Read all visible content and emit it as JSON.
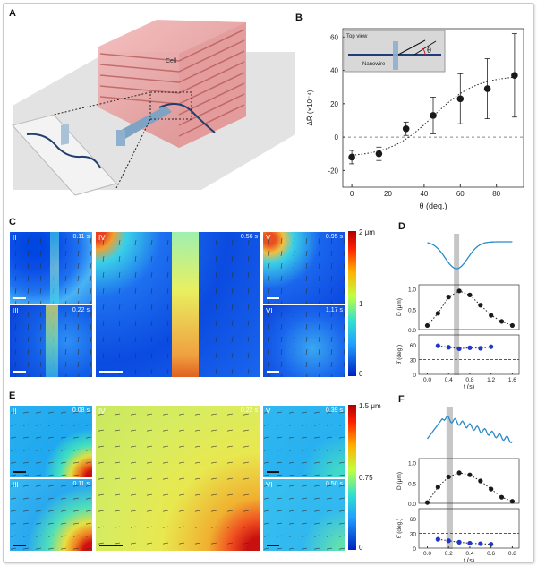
{
  "panels": {
    "A": "A",
    "B": "B",
    "C": "C",
    "D": "D",
    "E": "E",
    "F": "F"
  },
  "panelA": {
    "cell_label": "Cell"
  },
  "panelB": {
    "inset_title": "Top view",
    "inset_nanowire": "Nanowire",
    "inset_theta": "θ",
    "chart_data": {
      "type": "scatter",
      "title": "",
      "xlabel": "θ (deg.)",
      "ylabel": "ΔR̄ (×10⁻⁴)",
      "x": [
        0,
        15,
        30,
        45,
        60,
        75,
        90
      ],
      "y": [
        -12,
        -10,
        5,
        13,
        23,
        29,
        37
      ],
      "err": [
        4,
        4,
        4,
        11,
        15,
        18,
        25
      ],
      "xlim": [
        -5,
        95
      ],
      "ylim": [
        -30,
        65
      ],
      "xticks": [
        0,
        20,
        40,
        60,
        80
      ],
      "yticks": [
        -20,
        0,
        20,
        40,
        60
      ],
      "baseline": 0
    }
  },
  "panelC": {
    "tiles": [
      {
        "label": "II",
        "time": "0.11 s"
      },
      {
        "label": "III",
        "time": "0.22 s"
      },
      {
        "label": "IV",
        "time": "0.56 s"
      },
      {
        "label": "V",
        "time": "0.95 s"
      },
      {
        "label": "VI",
        "time": "1.17 s"
      }
    ],
    "colorbar": {
      "max": "2 μm",
      "mid": "1",
      "min": "0"
    }
  },
  "panelE": {
    "tiles": [
      {
        "label": "II",
        "time": "0.08 s"
      },
      {
        "label": "III",
        "time": "0.11 s"
      },
      {
        "label": "IV",
        "time": "0.22 s"
      },
      {
        "label": "V",
        "time": "0.39 s"
      },
      {
        "label": "VI",
        "time": "0.50 s"
      }
    ],
    "colorbar": {
      "max": "1.5 μm",
      "mid": "0.75",
      "min": "0"
    }
  },
  "panelD": {
    "chart_data": {
      "type": "line",
      "xlabel": "t (s)",
      "ylabel_top": "D̄ (μm)",
      "ylabel_bottom": "θ̄ (deg.)",
      "xticks": [
        0.0,
        0.4,
        0.8,
        1.2,
        1.6
      ],
      "D_t": [
        0.0,
        0.2,
        0.4,
        0.6,
        0.8,
        1.0,
        1.2,
        1.4,
        1.6
      ],
      "D_values": [
        0.1,
        0.4,
        0.8,
        0.95,
        0.85,
        0.6,
        0.35,
        0.2,
        0.1
      ],
      "D_yticks": [
        0.0,
        0.5,
        1.0
      ],
      "theta_t": [
        0.2,
        0.4,
        0.6,
        0.8,
        1.0,
        1.2
      ],
      "theta_values": [
        58,
        55,
        52,
        54,
        53,
        56
      ],
      "theta_yticks": [
        0,
        30,
        60
      ],
      "theta_ref": 30,
      "highlight_t": [
        0.5,
        0.6
      ]
    }
  },
  "panelF": {
    "chart_data": {
      "type": "line",
      "xlabel": "t (s)",
      "ylabel_top": "D̄ (μm)",
      "ylabel_bottom": "θ̄ (deg.)",
      "xticks": [
        0.0,
        0.2,
        0.4,
        0.6,
        0.8
      ],
      "D_t": [
        0.0,
        0.1,
        0.2,
        0.3,
        0.4,
        0.5,
        0.6,
        0.7,
        0.8
      ],
      "D_values": [
        0.02,
        0.4,
        0.65,
        0.75,
        0.7,
        0.55,
        0.35,
        0.15,
        0.05
      ],
      "D_yticks": [
        0.0,
        0.5,
        1.0
      ],
      "theta_t": [
        0.1,
        0.2,
        0.3,
        0.4,
        0.5,
        0.6
      ],
      "theta_values": [
        18,
        15,
        12,
        10,
        9,
        8
      ],
      "theta_yticks": [
        0,
        30,
        60
      ],
      "theta_ref": 30,
      "highlight_t": [
        0.18,
        0.24
      ]
    }
  }
}
